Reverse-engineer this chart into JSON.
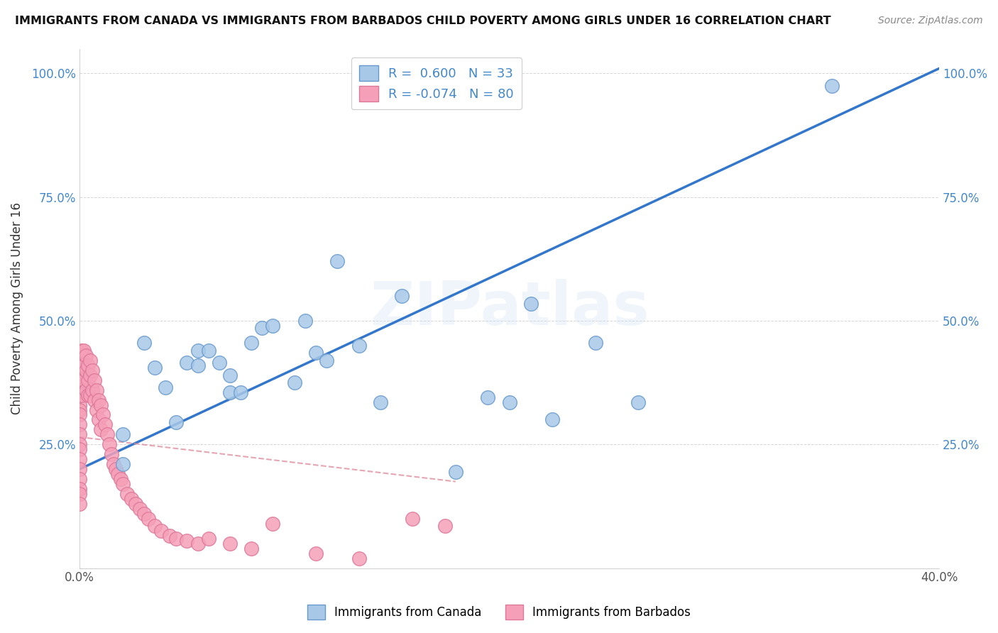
{
  "title": "IMMIGRANTS FROM CANADA VS IMMIGRANTS FROM BARBADOS CHILD POVERTY AMONG GIRLS UNDER 16 CORRELATION CHART",
  "source": "Source: ZipAtlas.com",
  "ylabel": "Child Poverty Among Girls Under 16",
  "xlim": [
    0.0,
    0.4
  ],
  "ylim": [
    0.0,
    1.05
  ],
  "canada_color": "#a8c8e8",
  "barbados_color": "#f5a0b8",
  "canada_edge_color": "#6699cc",
  "barbados_edge_color": "#dd7799",
  "trend_canada_color": "#3377cc",
  "trend_barbados_color": "#dd8899",
  "R_canada": 0.6,
  "N_canada": 33,
  "R_barbados": -0.074,
  "N_barbados": 80,
  "legend_text_color": "#4488cc",
  "watermark": "ZIPatlas",
  "canada_points_x": [
    0.02,
    0.02,
    0.03,
    0.035,
    0.04,
    0.045,
    0.05,
    0.055,
    0.055,
    0.06,
    0.065,
    0.07,
    0.07,
    0.075,
    0.08,
    0.085,
    0.09,
    0.1,
    0.105,
    0.11,
    0.115,
    0.12,
    0.13,
    0.14,
    0.15,
    0.175,
    0.19,
    0.2,
    0.21,
    0.22,
    0.24,
    0.26,
    0.35
  ],
  "canada_points_y": [
    0.27,
    0.21,
    0.455,
    0.405,
    0.365,
    0.295,
    0.415,
    0.44,
    0.41,
    0.44,
    0.415,
    0.355,
    0.39,
    0.355,
    0.455,
    0.485,
    0.49,
    0.375,
    0.5,
    0.435,
    0.42,
    0.62,
    0.45,
    0.335,
    0.55,
    0.195,
    0.345,
    0.335,
    0.535,
    0.3,
    0.455,
    0.335,
    0.975
  ],
  "barbados_points_x": [
    0.0,
    0.0,
    0.0,
    0.0,
    0.0,
    0.0,
    0.0,
    0.0,
    0.0,
    0.0,
    0.0,
    0.0,
    0.0,
    0.0,
    0.0,
    0.0,
    0.0,
    0.0,
    0.0,
    0.0,
    0.0,
    0.0,
    0.0,
    0.0,
    0.001,
    0.001,
    0.001,
    0.001,
    0.002,
    0.002,
    0.002,
    0.003,
    0.003,
    0.003,
    0.004,
    0.004,
    0.004,
    0.005,
    0.005,
    0.005,
    0.006,
    0.006,
    0.007,
    0.007,
    0.008,
    0.008,
    0.009,
    0.009,
    0.01,
    0.01,
    0.011,
    0.012,
    0.013,
    0.014,
    0.015,
    0.016,
    0.017,
    0.018,
    0.019,
    0.02,
    0.022,
    0.024,
    0.026,
    0.028,
    0.03,
    0.032,
    0.035,
    0.038,
    0.042,
    0.045,
    0.05,
    0.055,
    0.06,
    0.07,
    0.08,
    0.09,
    0.11,
    0.13,
    0.155,
    0.17
  ],
  "barbados_points_y": [
    0.435,
    0.42,
    0.4,
    0.39,
    0.37,
    0.36,
    0.35,
    0.33,
    0.32,
    0.31,
    0.29,
    0.27,
    0.25,
    0.24,
    0.22,
    0.2,
    0.18,
    0.16,
    0.15,
    0.13,
    0.42,
    0.4,
    0.38,
    0.36,
    0.44,
    0.41,
    0.38,
    0.35,
    0.44,
    0.41,
    0.38,
    0.43,
    0.4,
    0.36,
    0.41,
    0.38,
    0.35,
    0.42,
    0.39,
    0.35,
    0.4,
    0.36,
    0.38,
    0.34,
    0.36,
    0.32,
    0.34,
    0.3,
    0.33,
    0.28,
    0.31,
    0.29,
    0.27,
    0.25,
    0.23,
    0.21,
    0.2,
    0.19,
    0.18,
    0.17,
    0.15,
    0.14,
    0.13,
    0.12,
    0.11,
    0.1,
    0.085,
    0.075,
    0.065,
    0.06,
    0.055,
    0.05,
    0.06,
    0.05,
    0.04,
    0.09,
    0.03,
    0.02,
    0.1,
    0.085
  ],
  "trend_canada_x0": 0.0,
  "trend_canada_y0": 0.2,
  "trend_canada_x1": 0.4,
  "trend_canada_y1": 1.01,
  "trend_barbados_x0": 0.0,
  "trend_barbados_y0": 0.265,
  "trend_barbados_x1": 0.175,
  "trend_barbados_y1": 0.175
}
